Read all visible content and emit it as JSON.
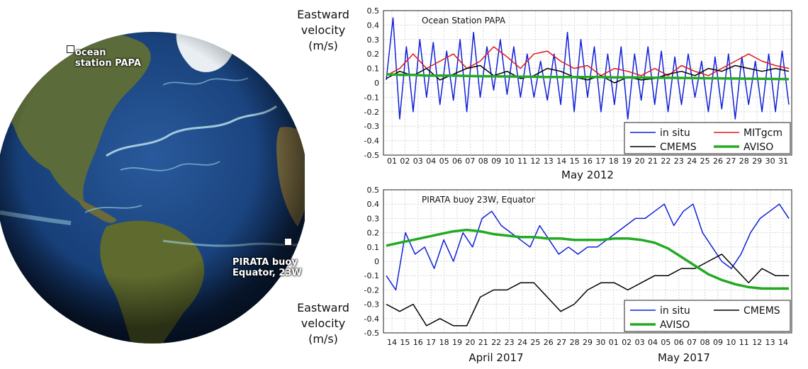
{
  "globe": {
    "station_papa_label_line1": "ocean",
    "station_papa_label_line2": "station PAPA",
    "pirata_label_line1": "PIRATA buoy",
    "pirata_label_line2": "Equator, 23W"
  },
  "colors": {
    "in_situ": "#1020d8",
    "mitgcm": "#e01818",
    "cmems": "#000000",
    "aviso": "#22aa22"
  },
  "chart_data": [
    {
      "type": "line",
      "title": "Ocean Station PAPA",
      "ylabel_lines": [
        "Eastward",
        "velocity",
        "(m/s)"
      ],
      "xlabel": "May 2012",
      "ylim": [
        -0.5,
        0.5
      ],
      "yticks": [
        "0.5",
        "0.4",
        "0.3",
        "0.2",
        "0.1",
        "0",
        "-0.1",
        "-0.2",
        "-0.3",
        "-0.4",
        "-0.5"
      ],
      "x_ticks": [
        "01",
        "02",
        "03",
        "04",
        "05",
        "06",
        "07",
        "08",
        "09",
        "10",
        "11",
        "12",
        "13",
        "14",
        "15",
        "16",
        "17",
        "18",
        "19",
        "20",
        "21",
        "22",
        "23",
        "24",
        "25",
        "26",
        "27",
        "28",
        "29",
        "30",
        "31"
      ],
      "grid": true,
      "legend_position": "bottom-right",
      "legend": [
        "in situ",
        "MITgcm",
        "CMEMS",
        "AVISO"
      ],
      "series": [
        {
          "name": "in situ",
          "color": "#1020d8",
          "values": [
            0.02,
            0.45,
            -0.25,
            0.25,
            -0.2,
            0.3,
            -0.1,
            0.28,
            -0.15,
            0.22,
            -0.12,
            0.3,
            -0.2,
            0.35,
            -0.1,
            0.25,
            -0.05,
            0.3,
            -0.08,
            0.25,
            -0.1,
            0.2,
            -0.1,
            0.15,
            -0.12,
            0.2,
            -0.15,
            0.35,
            -0.2,
            0.3,
            -0.1,
            0.25,
            -0.2,
            0.2,
            -0.15,
            0.25,
            -0.25,
            0.2,
            -0.12,
            0.25,
            -0.15,
            0.22,
            -0.2,
            0.18,
            -0.15,
            0.2,
            -0.1,
            0.15,
            -0.2,
            0.18,
            -0.18,
            0.2,
            -0.25,
            0.18,
            -0.15,
            0.15,
            -0.2,
            0.2,
            -0.2,
            0.22,
            -0.15
          ]
        },
        {
          "name": "MITgcm",
          "color": "#e01818",
          "values": [
            0.05,
            0.1,
            0.2,
            0.1,
            0.15,
            0.2,
            0.1,
            0.15,
            0.25,
            0.18,
            0.1,
            0.2,
            0.22,
            0.15,
            0.1,
            0.12,
            0.05,
            0.1,
            0.08,
            0.05,
            0.1,
            0.05,
            0.12,
            0.08,
            0.05,
            0.1,
            0.15,
            0.2,
            0.15,
            0.12,
            0.1
          ]
        },
        {
          "name": "CMEMS",
          "color": "#000000",
          "values": [
            0.03,
            0.08,
            0.05,
            0.1,
            0.02,
            0.06,
            0.1,
            0.12,
            0.05,
            0.08,
            0.03,
            0.05,
            0.1,
            0.08,
            0.04,
            0.02,
            0.05,
            0.0,
            0.04,
            0.02,
            0.03,
            0.06,
            0.08,
            0.05,
            0.1,
            0.08,
            0.12,
            0.1,
            0.08,
            0.1,
            0.08
          ]
        },
        {
          "name": "AVISO",
          "color": "#22aa22",
          "values": [
            0.06,
            0.055,
            0.055,
            0.05,
            0.05,
            0.05,
            0.048,
            0.046,
            0.045,
            0.044,
            0.043,
            0.042,
            0.04,
            0.04,
            0.04,
            0.04,
            0.04,
            0.038,
            0.038,
            0.037,
            0.036,
            0.035,
            0.034,
            0.033,
            0.032,
            0.031,
            0.03,
            0.029,
            0.028,
            0.027,
            0.026
          ]
        }
      ]
    },
    {
      "type": "line",
      "title": "PIRATA buoy 23W, Equator",
      "ylabel_lines": [
        "Eastward",
        "velocity",
        "(m/s)"
      ],
      "xlabel_left": "April 2017",
      "xlabel_right": "May 2017",
      "ylim": [
        -0.5,
        0.5
      ],
      "yticks": [
        "0.5",
        "0.4",
        "0.3",
        "0.2",
        "0.1",
        "0",
        "-0.1",
        "-0.2",
        "-0.3",
        "-0.4",
        "-0.5"
      ],
      "x_ticks": [
        "14",
        "15",
        "16",
        "17",
        "18",
        "19",
        "20",
        "21",
        "22",
        "23",
        "24",
        "25",
        "26",
        "27",
        "28",
        "29",
        "30",
        "01",
        "02",
        "03",
        "04",
        "05",
        "06",
        "07",
        "08",
        "09",
        "10",
        "11",
        "12",
        "13",
        "14"
      ],
      "grid": true,
      "legend_position": "bottom-right",
      "legend": [
        "in situ",
        "CMEMS",
        "AVISO"
      ],
      "series": [
        {
          "name": "in situ",
          "color": "#1020d8",
          "values": [
            -0.1,
            -0.2,
            0.2,
            0.05,
            0.1,
            -0.05,
            0.15,
            0.0,
            0.2,
            0.1,
            0.3,
            0.35,
            0.25,
            0.2,
            0.15,
            0.1,
            0.25,
            0.15,
            0.05,
            0.1,
            0.05,
            0.1,
            0.1,
            0.15,
            0.2,
            0.25,
            0.3,
            0.3,
            0.35,
            0.4,
            0.25,
            0.35,
            0.4,
            0.2,
            0.1,
            0.0,
            -0.05,
            0.05,
            0.2,
            0.3,
            0.35,
            0.4,
            0.3
          ]
        },
        {
          "name": "CMEMS",
          "color": "#000000",
          "values": [
            -0.3,
            -0.35,
            -0.3,
            -0.45,
            -0.4,
            -0.45,
            -0.45,
            -0.25,
            -0.2,
            -0.2,
            -0.15,
            -0.15,
            -0.25,
            -0.35,
            -0.3,
            -0.2,
            -0.15,
            -0.15,
            -0.2,
            -0.15,
            -0.1,
            -0.1,
            -0.05,
            -0.05,
            0.0,
            0.05,
            -0.05,
            -0.15,
            -0.05,
            -0.1,
            -0.1
          ]
        },
        {
          "name": "AVISO",
          "color": "#22aa22",
          "values": [
            0.11,
            0.13,
            0.15,
            0.17,
            0.19,
            0.21,
            0.22,
            0.21,
            0.19,
            0.18,
            0.17,
            0.17,
            0.16,
            0.16,
            0.15,
            0.15,
            0.15,
            0.16,
            0.16,
            0.15,
            0.13,
            0.09,
            0.03,
            -0.03,
            -0.09,
            -0.13,
            -0.16,
            -0.18,
            -0.19,
            -0.19,
            -0.19
          ]
        }
      ]
    }
  ]
}
